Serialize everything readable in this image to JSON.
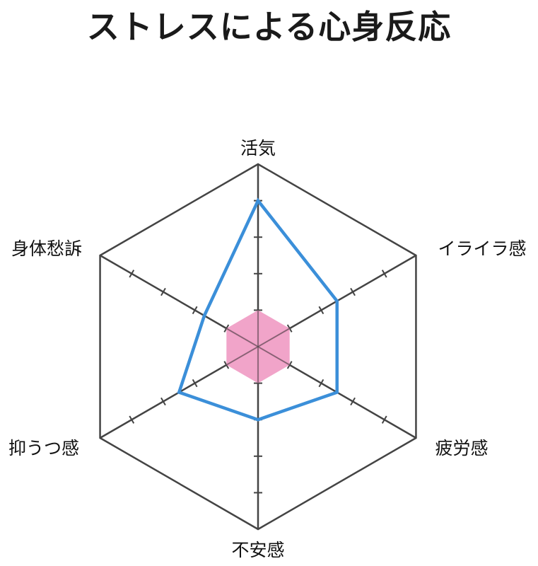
{
  "chart_data": {
    "type": "radar",
    "title": "ストレスによる心身反応",
    "axes": [
      "活気",
      "イライラ感",
      "疲労感",
      "不安感",
      "抑うつ感",
      "身体愁訴"
    ],
    "scale": {
      "min": 0,
      "max": 5,
      "ticks": [
        1,
        2,
        3,
        4,
        5
      ]
    },
    "grid": true,
    "series": [
      {
        "values": [
          4.0,
          2.5,
          2.5,
          2.0,
          2.5,
          1.7
        ],
        "color": "#3b8fd9",
        "fill": "none"
      },
      {
        "values": [
          1.0,
          1.0,
          1.0,
          1.0,
          1.0,
          1.0
        ],
        "color": "#e87aac",
        "fill": "#ee94bf"
      }
    ]
  },
  "colors": {
    "grid": "#444444",
    "title": "#1a1a1a"
  }
}
